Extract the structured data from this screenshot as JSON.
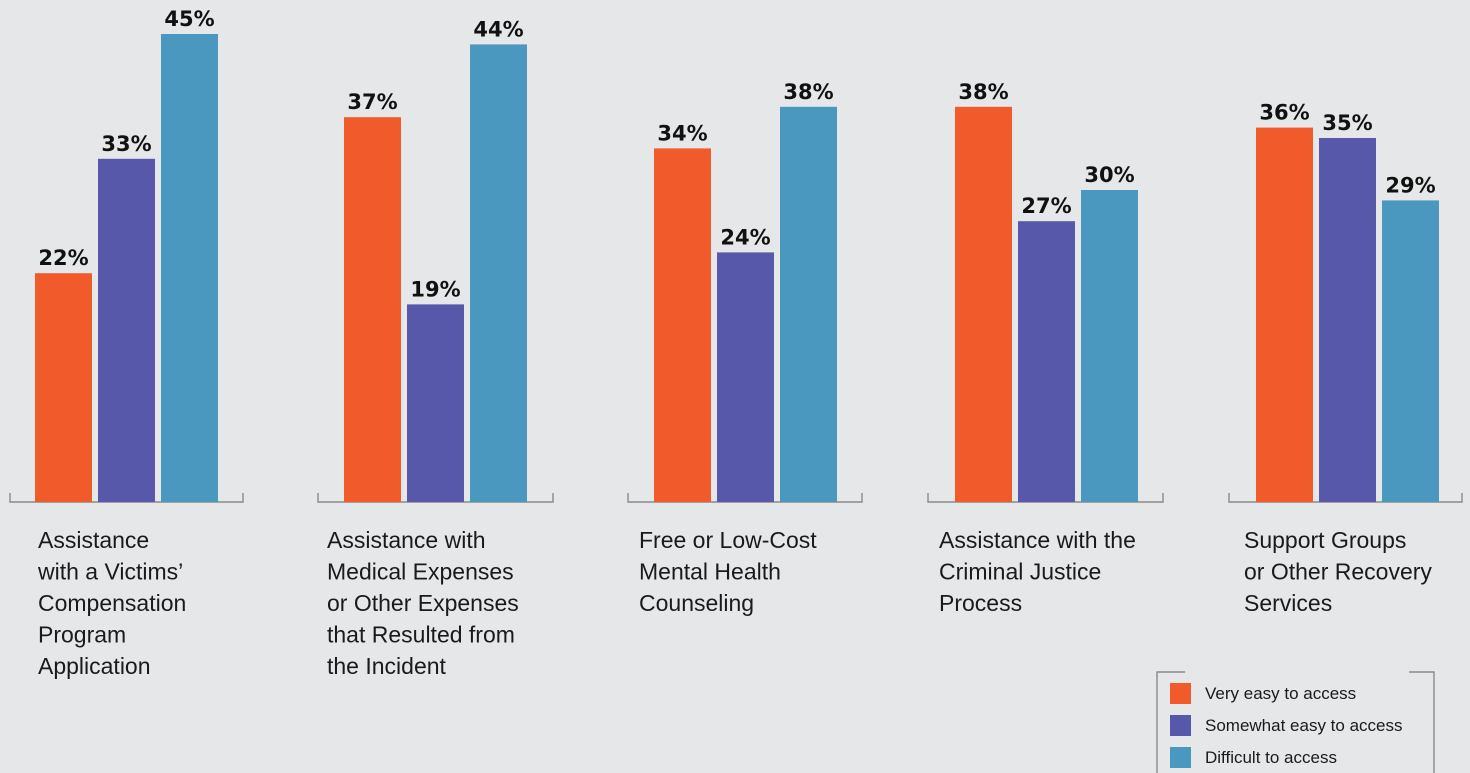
{
  "chart_data": {
    "type": "bar",
    "categories": [
      "Assistance with a Victims' Compensation Program Application",
      "Assistance with Medical Expenses or Other Expenses that Resulted from the Incident",
      "Free or Low-Cost Mental Health Counseling",
      "Assistance with the Criminal Justice Process",
      "Support Groups or Other Recovery Services"
    ],
    "category_lines": [
      [
        "Assistance",
        "with a Victims’",
        "Compensation",
        "Program",
        "Application"
      ],
      [
        "Assistance with",
        "Medical Expenses",
        "or Other Expenses",
        "that Resulted from",
        "the Incident"
      ],
      [
        "Free or Low-Cost",
        "Mental Health",
        "Counseling"
      ],
      [
        "Assistance with the",
        "Criminal Justice",
        "Process"
      ],
      [
        "Support Groups",
        "or Other Recovery",
        "Services"
      ]
    ],
    "series": [
      {
        "name": "Very easy to access",
        "color": "#f15a2b",
        "values": [
          22,
          37,
          34,
          38,
          36
        ]
      },
      {
        "name": "Somewhat easy to access",
        "color": "#5758a9",
        "values": [
          33,
          19,
          24,
          27,
          35
        ]
      },
      {
        "name": "Difficult to access",
        "color": "#4a98bf",
        "values": [
          45,
          44,
          38,
          30,
          29
        ]
      }
    ],
    "value_suffix": "%",
    "ylim": [
      0,
      50
    ],
    "grid": false,
    "legend_position": "bottom-right",
    "title": "",
    "xlabel": "",
    "ylabel": ""
  }
}
